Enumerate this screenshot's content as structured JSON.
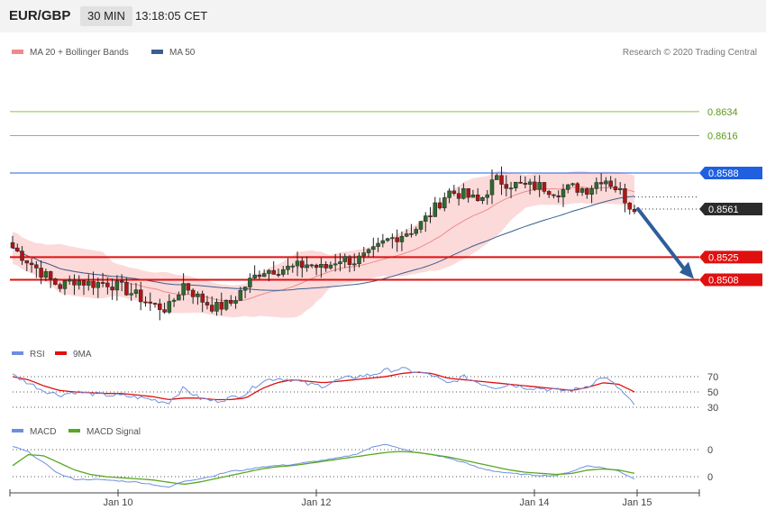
{
  "header": {
    "pair": "EUR/GBP",
    "timeframe": "30 MIN",
    "time": "13:18:05 CET"
  },
  "legend": {
    "main": [
      {
        "label": "MA 20 + Bollinger Bands",
        "color": "#f08a8a"
      },
      {
        "label": "MA 50",
        "color": "#3a5f8f"
      }
    ],
    "rsi": [
      {
        "label": "RSI",
        "color": "#6d8fe0"
      },
      {
        "label": "9MA",
        "color": "#e01010"
      }
    ],
    "macd": [
      {
        "label": "MACD",
        "color": "#6d8fe0"
      },
      {
        "label": "MACD Signal",
        "color": "#58a822"
      }
    ]
  },
  "credit": "Research © 2020 Trading Central",
  "chart_data": {
    "type": "candlestick",
    "instrument": "EUR/GBP",
    "interval": "30 MIN",
    "x_labels": [
      "Jan 10",
      "Jan 12",
      "Jan 14",
      "Jan 15"
    ],
    "price_axis_range": [
      0.8455,
      0.8645
    ],
    "levels": [
      {
        "value": "0.8634",
        "price": 0.8634,
        "kind": "target",
        "color": "#8bc34a"
      },
      {
        "value": "0.8616",
        "price": 0.8616,
        "kind": "target",
        "color": "#8bc34a"
      },
      {
        "value": "0.8588",
        "price": 0.8588,
        "kind": "pivot",
        "color": "#1f5fe0"
      },
      {
        "value": "0.8561",
        "price": 0.8561,
        "kind": "last",
        "color": "#222222"
      },
      {
        "value": "0.8525",
        "price": 0.8525,
        "kind": "support",
        "color": "#e01010"
      },
      {
        "value": "0.8508",
        "price": 0.8508,
        "kind": "support",
        "color": "#e01010"
      }
    ],
    "projection": {
      "from": 0.8561,
      "to": 0.8508
    },
    "close_anchors": [
      0.8532,
      0.8522,
      0.8512,
      0.8503,
      0.8508,
      0.8505,
      0.8506,
      0.8502,
      0.8496,
      0.8489,
      0.8486,
      0.8505,
      0.8494,
      0.8487,
      0.849,
      0.8504,
      0.8515,
      0.8516,
      0.8517,
      0.852,
      0.8516,
      0.8524,
      0.8522,
      0.8527,
      0.8537,
      0.8542,
      0.8547,
      0.8559,
      0.8574,
      0.8572,
      0.8566,
      0.8583,
      0.858,
      0.8578,
      0.8578,
      0.8574,
      0.8577,
      0.8576,
      0.8585,
      0.8575,
      0.8559
    ],
    "rsi": {
      "levels": [
        "70",
        "50",
        "30"
      ],
      "level_values": [
        70,
        50,
        30
      ],
      "rsi_anchors": [
        72,
        62,
        52,
        46,
        50,
        48,
        46,
        45,
        43,
        40,
        36,
        55,
        42,
        38,
        42,
        48,
        64,
        68,
        66,
        60,
        58,
        66,
        70,
        72,
        78,
        80,
        76,
        72,
        60,
        70,
        62,
        56,
        60,
        56,
        55,
        52,
        52,
        58,
        70,
        55,
        32
      ],
      "ma_anchors": [
        70,
        66,
        58,
        52,
        50,
        49,
        48,
        48,
        46,
        44,
        40,
        42,
        42,
        40,
        40,
        42,
        54,
        62,
        66,
        64,
        62,
        64,
        66,
        68,
        70,
        74,
        76,
        74,
        68,
        66,
        64,
        62,
        60,
        58,
        56,
        54,
        52,
        56,
        62,
        60,
        50
      ]
    },
    "macd": {
      "levels": [
        "0",
        "0"
      ],
      "macd_anchors": [
        0.55,
        0.45,
        0.25,
        0.05,
        -0.05,
        -0.05,
        -0.06,
        -0.08,
        -0.1,
        -0.14,
        -0.2,
        -0.08,
        -0.04,
        0.02,
        0.1,
        0.12,
        0.18,
        0.2,
        0.22,
        0.26,
        0.3,
        0.34,
        0.4,
        0.52,
        0.6,
        0.5,
        0.44,
        0.4,
        0.34,
        0.26,
        0.16,
        0.1,
        0.06,
        0.04,
        0.02,
        0.02,
        0.1,
        0.2,
        0.16,
        0.1,
        -0.04
      ],
      "signal_anchors": [
        0.2,
        0.4,
        0.38,
        0.25,
        0.12,
        0.04,
        0.0,
        -0.02,
        -0.04,
        -0.06,
        -0.1,
        -0.14,
        -0.1,
        -0.04,
        0.02,
        0.08,
        0.14,
        0.18,
        0.2,
        0.24,
        0.28,
        0.32,
        0.36,
        0.4,
        0.44,
        0.46,
        0.44,
        0.4,
        0.36,
        0.3,
        0.24,
        0.18,
        0.12,
        0.08,
        0.06,
        0.04,
        0.06,
        0.12,
        0.14,
        0.12,
        0.06
      ]
    }
  }
}
